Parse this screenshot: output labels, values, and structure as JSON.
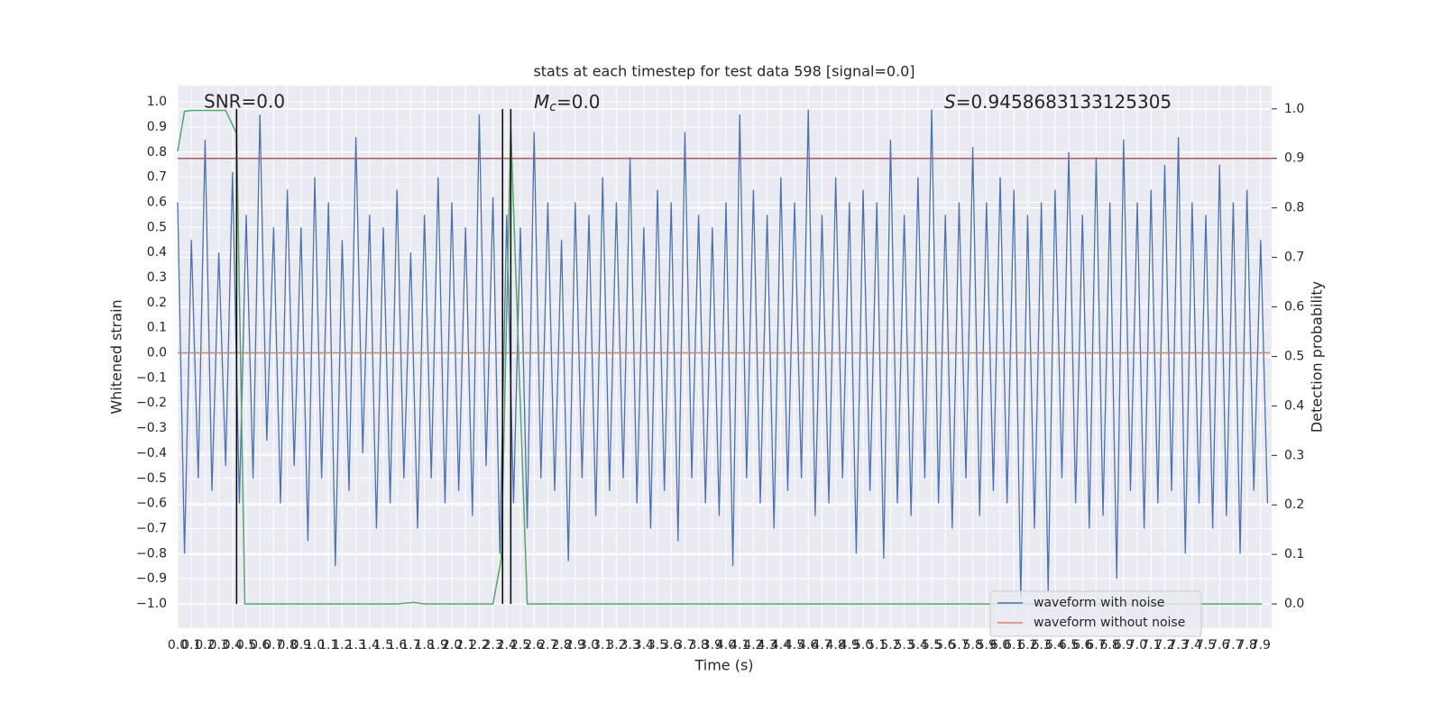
{
  "chart_data": {
    "type": "line",
    "title": "stats at each timestep for test data 598 [signal=0.0]",
    "xlabel": "Time (s)",
    "ylabel": "Whitened strain",
    "y2label": "Detection probability",
    "annotations": [
      {
        "text": "SNR=0.0"
      },
      {
        "symbol": "M",
        "subscript": "c",
        "text": "=0.0"
      },
      {
        "symbol": "S",
        "text": "=0.9458683133125305"
      }
    ],
    "xlim": [
      0,
      7.98
    ],
    "ylim": [
      -1.097,
      1.065
    ],
    "y2lim": [
      -0.049,
      1.047
    ],
    "xticks": [
      {
        "value": 0,
        "label": "0.0"
      },
      0.1,
      0.2,
      0.3,
      0.4,
      0.5,
      0.6,
      0.7,
      0.8,
      0.9,
      {
        "value": 1,
        "label": "1.0"
      },
      1.1,
      1.2,
      1.3,
      1.4,
      1.5,
      1.6,
      1.7,
      1.8,
      1.9,
      {
        "value": 2,
        "label": "2.0"
      },
      2.1,
      2.2,
      2.3,
      2.4,
      2.5,
      2.6,
      2.7,
      2.8,
      2.9,
      {
        "value": 3,
        "label": "3.0"
      },
      3.1,
      3.2,
      3.3,
      3.4,
      3.5,
      3.6,
      3.7,
      3.8,
      3.9,
      {
        "value": 4,
        "label": "4.0"
      },
      4.1,
      4.2,
      4.3,
      4.4,
      4.5,
      4.6,
      4.7,
      4.8,
      4.9,
      {
        "value": 5,
        "label": "5.0"
      },
      5.1,
      5.2,
      5.3,
      5.4,
      5.5,
      5.6,
      5.7,
      5.8,
      5.9,
      {
        "value": 6,
        "label": "6.0"
      },
      6.1,
      6.2,
      6.3,
      6.4,
      6.5,
      6.6,
      6.7,
      6.8,
      6.9,
      {
        "value": 7,
        "label": "7.0"
      },
      7.1,
      7.2,
      7.3,
      7.4,
      7.5,
      7.6,
      7.7,
      7.8,
      7.9
    ],
    "yticks": [
      {
        "value": 1,
        "label": "1.0"
      },
      0.9,
      0.8,
      0.7,
      0.6,
      0.5,
      0.4,
      0.3,
      0.2,
      0.1,
      {
        "value": 0,
        "label": "0.0"
      },
      {
        "value": -0.1,
        "label": "−0.1"
      },
      {
        "value": -0.2,
        "label": "−0.2"
      },
      {
        "value": -0.3,
        "label": "−0.3"
      },
      {
        "value": -0.4,
        "label": "−0.4"
      },
      {
        "value": -0.5,
        "label": "−0.5"
      },
      {
        "value": -0.6,
        "label": "−0.6"
      },
      {
        "value": -0.7,
        "label": "−0.7"
      },
      {
        "value": -0.8,
        "label": "−0.8"
      },
      {
        "value": -0.9,
        "label": "−0.9"
      },
      {
        "value": -1,
        "label": "−1.0"
      }
    ],
    "y2ticks": [
      {
        "value": 0,
        "label": "0.0"
      },
      0.1,
      0.2,
      0.3,
      0.4,
      0.5,
      0.6,
      0.7,
      0.8,
      0.9,
      {
        "value": 1,
        "label": "1.0"
      }
    ],
    "grid": true,
    "legend": "lower right",
    "series": [
      {
        "name": "waveform with noise",
        "color": "#4c72b0",
        "x": [
          0,
          0.05,
          0.1,
          0.15,
          0.2,
          0.25,
          0.3,
          0.35,
          0.4,
          0.45,
          0.5,
          0.55,
          0.6,
          0.65,
          0.7,
          0.75,
          0.8,
          0.85,
          0.9,
          0.95,
          1,
          1.05,
          1.1,
          1.15,
          1.2,
          1.25,
          1.3,
          1.35,
          1.4,
          1.45,
          1.5,
          1.55,
          1.6,
          1.65,
          1.7,
          1.75,
          1.8,
          1.85,
          1.9,
          1.95,
          2,
          2.05,
          2.1,
          2.15,
          2.2,
          2.25,
          2.3,
          2.35,
          2.4,
          2.45,
          2.5,
          2.55,
          2.6,
          2.65,
          2.7,
          2.75,
          2.8,
          2.85,
          2.9,
          2.95,
          3,
          3.05,
          3.1,
          3.15,
          3.2,
          3.25,
          3.3,
          3.35,
          3.4,
          3.45,
          3.5,
          3.55,
          3.6,
          3.65,
          3.7,
          3.75,
          3.8,
          3.85,
          3.9,
          3.95,
          4,
          4.05,
          4.1,
          4.15,
          4.2,
          4.25,
          4.3,
          4.35,
          4.4,
          4.45,
          4.5,
          4.55,
          4.6,
          4.65,
          4.7,
          4.75,
          4.8,
          4.85,
          4.9,
          4.95,
          5,
          5.05,
          5.1,
          5.15,
          5.2,
          5.25,
          5.3,
          5.35,
          5.4,
          5.45,
          5.5,
          5.55,
          5.6,
          5.65,
          5.7,
          5.75,
          5.8,
          5.85,
          5.9,
          5.95,
          6,
          6.05,
          6.1,
          6.15,
          6.2,
          6.25,
          6.3,
          6.35,
          6.4,
          6.45,
          6.5,
          6.55,
          6.6,
          6.65,
          6.7,
          6.75,
          6.8,
          6.85,
          6.9,
          6.95,
          7,
          7.05,
          7.1,
          7.15,
          7.2,
          7.25,
          7.3,
          7.35,
          7.4,
          7.45,
          7.5,
          7.55,
          7.6,
          7.65,
          7.7,
          7.75,
          7.8,
          7.85,
          7.9,
          7.95
        ],
        "values": [
          0.6,
          -0.8,
          0.45,
          -0.5,
          0.85,
          -0.55,
          0.4,
          -0.45,
          0.72,
          -0.6,
          0.55,
          -0.5,
          0.95,
          -0.35,
          0.5,
          -0.6,
          0.65,
          -0.45,
          0.5,
          -0.75,
          0.7,
          -0.5,
          0.6,
          -0.85,
          0.45,
          -0.55,
          0.86,
          -0.4,
          0.55,
          -0.7,
          0.5,
          -0.6,
          0.65,
          -0.5,
          0.4,
          -0.7,
          0.55,
          -0.5,
          0.7,
          -0.6,
          0.6,
          -0.55,
          0.5,
          -0.65,
          0.95,
          -0.45,
          0.62,
          -0.8,
          0.55,
          -0.6,
          0.5,
          -0.7,
          0.88,
          -0.5,
          0.6,
          -0.55,
          0.45,
          -0.83,
          0.6,
          -0.5,
          0.55,
          -0.65,
          0.7,
          -0.55,
          0.6,
          -0.5,
          0.78,
          -0.6,
          0.5,
          -0.7,
          0.65,
          -0.55,
          0.6,
          -0.75,
          0.88,
          -0.5,
          0.55,
          -0.6,
          0.5,
          -0.65,
          0.6,
          -0.85,
          0.95,
          -0.5,
          0.65,
          -0.6,
          0.55,
          -0.7,
          0.7,
          -0.55,
          0.6,
          -0.5,
          0.97,
          -0.65,
          0.55,
          -0.6,
          0.7,
          -0.5,
          0.6,
          -0.8,
          0.65,
          -0.55,
          0.6,
          -0.82,
          0.85,
          -0.6,
          0.55,
          -0.65,
          0.7,
          -0.5,
          0.97,
          -0.6,
          0.55,
          -0.7,
          0.6,
          -0.5,
          0.82,
          -0.65,
          0.6,
          -0.55,
          0.7,
          -0.6,
          0.65,
          -0.98,
          0.55,
          -0.7,
          0.6,
          -0.95,
          0.65,
          -0.5,
          0.8,
          -0.6,
          0.55,
          -0.7,
          0.78,
          -0.65,
          0.6,
          -0.9,
          0.85,
          -0.55,
          0.6,
          -0.7,
          0.65,
          -0.6,
          0.75,
          -0.55,
          0.86,
          -0.8,
          0.6,
          -0.6,
          0.55,
          -0.7,
          0.75,
          -0.65,
          0.6,
          -0.8,
          0.65,
          -0.55,
          0.45,
          -0.6
        ]
      },
      {
        "name": "waveform without noise",
        "color": "#dd8452",
        "x": [
          0,
          7.97
        ],
        "values": [
          0,
          0
        ]
      },
      {
        "color": "#55a868",
        "axis": "y2",
        "x": [
          0,
          0.05,
          0.1,
          0.35,
          0.43,
          0.49,
          1.6,
          1.72,
          1.8,
          2.3,
          2.36,
          2.43,
          2.55,
          7.91
        ],
        "values": [
          0.914,
          0.995,
          0.997,
          0.997,
          0.95,
          0,
          0,
          0.003,
          0,
          0,
          0.09,
          0.96,
          0,
          0
        ]
      }
    ],
    "hlines": [
      {
        "y": 0.9,
        "color": "#c44e52",
        "axis": "y2"
      }
    ],
    "vlines": [
      {
        "x": 0.43,
        "ymin": 0,
        "ymax": 1,
        "color": "#000000",
        "axis": "y2"
      },
      {
        "x": 2.37,
        "ymin": 0,
        "ymax": 1,
        "color": "#000000",
        "axis": "y2"
      },
      {
        "x": 2.43,
        "ymin": 0,
        "ymax": 1,
        "color": "#000000",
        "axis": "y2"
      }
    ]
  }
}
